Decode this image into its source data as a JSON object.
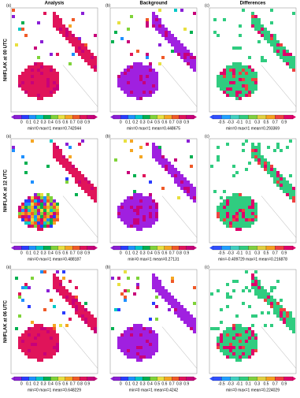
{
  "columns": [
    "Analysis",
    "Background",
    "Differences"
  ],
  "colorbar_ticks": [
    "0",
    "0.1",
    "0.2",
    "0.3",
    "0.4",
    "0.5",
    "0.6",
    "0.7",
    "0.8",
    "0.9"
  ],
  "diff_colorbar_ticks": [
    "-0.5",
    "-0.3",
    "-0.1",
    "0.1",
    "0.3",
    "0.5",
    "0.7",
    "0.9"
  ],
  "rows": [
    {
      "label": "NHFLAK at 00 UTC",
      "panels": [
        {
          "letter": "(a)",
          "stats": "min=0 max=1 mean=0.742044"
        },
        {
          "letter": "(b)",
          "stats": "min=0 max=1 mean=0.448675"
        },
        {
          "letter": "(c)",
          "stats": "min=0 max=1 mean=0.293369"
        }
      ]
    },
    {
      "label": "NHFLAK at 12 UTC",
      "panels": [
        {
          "letter": "(a)",
          "stats": "min=0 max=1 mean=0.488187"
        },
        {
          "letter": "(b)",
          "stats": "min=0 max=1 mean=0.27131"
        },
        {
          "letter": "(c)",
          "stats": "min=-0.409729 max=1 mean=0.216878"
        }
      ]
    },
    {
      "label": "NHFLAK at 06 UTC",
      "panels": [
        {
          "letter": "(a)",
          "stats": "min=0 max=1 mean=0.648229"
        },
        {
          "letter": "(b)",
          "stats": "min=0 max=1 mean=0.4242"
        },
        {
          "letter": "(c)",
          "stats": "min=0 max=1 mean=0.224029"
        }
      ]
    }
  ]
}
